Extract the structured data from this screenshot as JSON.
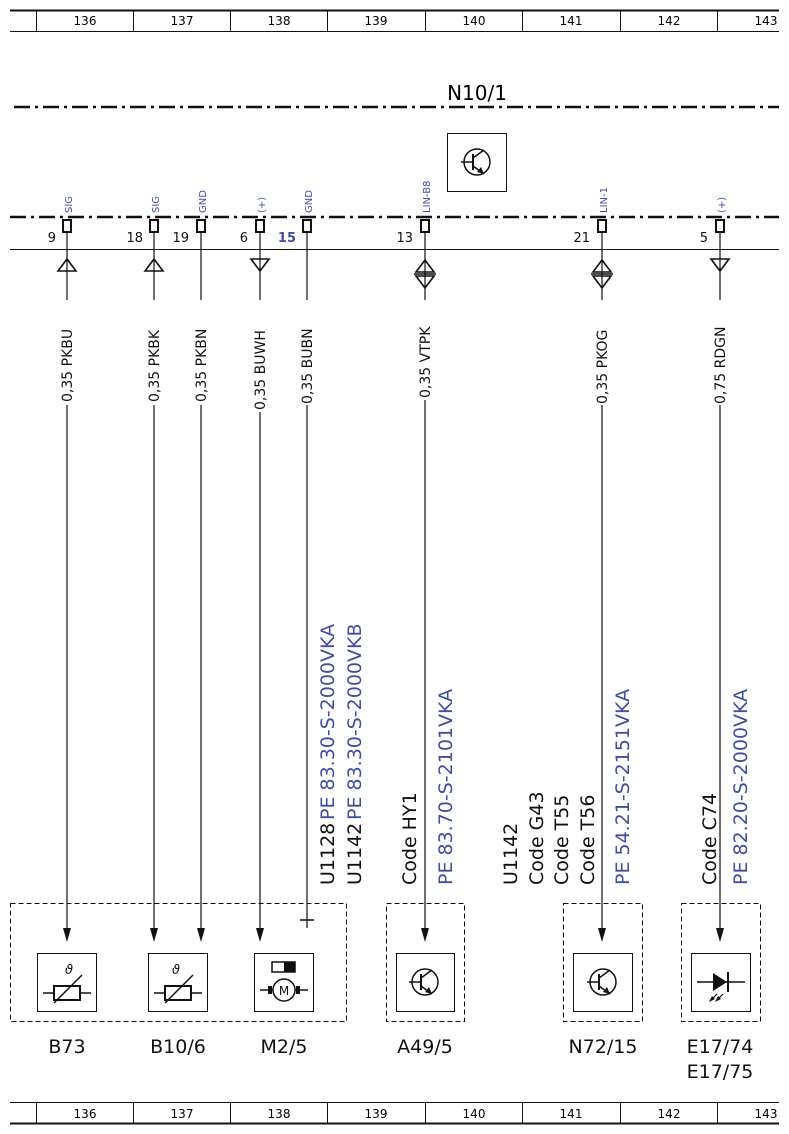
{
  "grid_columns": [
    "136",
    "137",
    "138",
    "139",
    "140",
    "141",
    "142",
    "143"
  ],
  "module": {
    "label": "N10/1",
    "icon": "transistor-icon"
  },
  "pins": [
    {
      "number": "9",
      "signal": "SIG",
      "wire": "0,35 PKBU",
      "arrow": "up"
    },
    {
      "number": "18",
      "signal": "SIG",
      "wire": "0,35 PKBK",
      "arrow": "up"
    },
    {
      "number": "19",
      "signal": "GND",
      "wire": "0,35 PKBN",
      "arrow": "none"
    },
    {
      "number": "6",
      "signal": "(+)",
      "wire": "0,35 BUWH",
      "arrow": "down"
    },
    {
      "number": "15",
      "signal": "GND",
      "wire": "0,35 BUBN",
      "arrow": "none"
    },
    {
      "number": "13",
      "signal": "LIN-B8",
      "wire": "0,35 VTPK",
      "arrow": "both"
    },
    {
      "number": "21",
      "signal": "LIN-1",
      "wire": "0,35 PKOG",
      "arrow": "both"
    },
    {
      "number": "5",
      "signal": "(+)",
      "wire": "0,75 RDGN",
      "arrow": "down"
    }
  ],
  "notes": {
    "m2": {
      "codes": [
        "U1128",
        "U1142"
      ],
      "refs": [
        "PE 83.30-S-2000VKA",
        "PE 83.30-S-2000VKB"
      ]
    },
    "a49": {
      "codes": [
        "Code HY1"
      ],
      "refs": [
        "PE 83.70-S-2101VKA"
      ]
    },
    "n72": {
      "codes": [
        "U1142",
        "Code G43",
        "Code T55",
        "Code T56"
      ],
      "refs": [
        "PE 54.21-S-2151VKA"
      ]
    },
    "e17": {
      "codes": [
        "Code C74"
      ],
      "refs": [
        "PE 82.20-S-2000VKA"
      ]
    }
  },
  "components": [
    {
      "label": "B73",
      "icon": "temperature-sensor-icon"
    },
    {
      "label": "B10/6",
      "icon": "temperature-sensor-icon"
    },
    {
      "label": "M2/5",
      "icon": "motor-icon"
    },
    {
      "label": "A49/5",
      "icon": "transistor-icon"
    },
    {
      "label": "N72/15",
      "icon": "transistor-icon"
    },
    {
      "label": "E17/74",
      "icon": "led-icon"
    },
    {
      "label": "E17/75",
      "icon": "led-icon"
    }
  ],
  "colors": {
    "ink": "#111111",
    "accent": "#3d4fa0"
  }
}
